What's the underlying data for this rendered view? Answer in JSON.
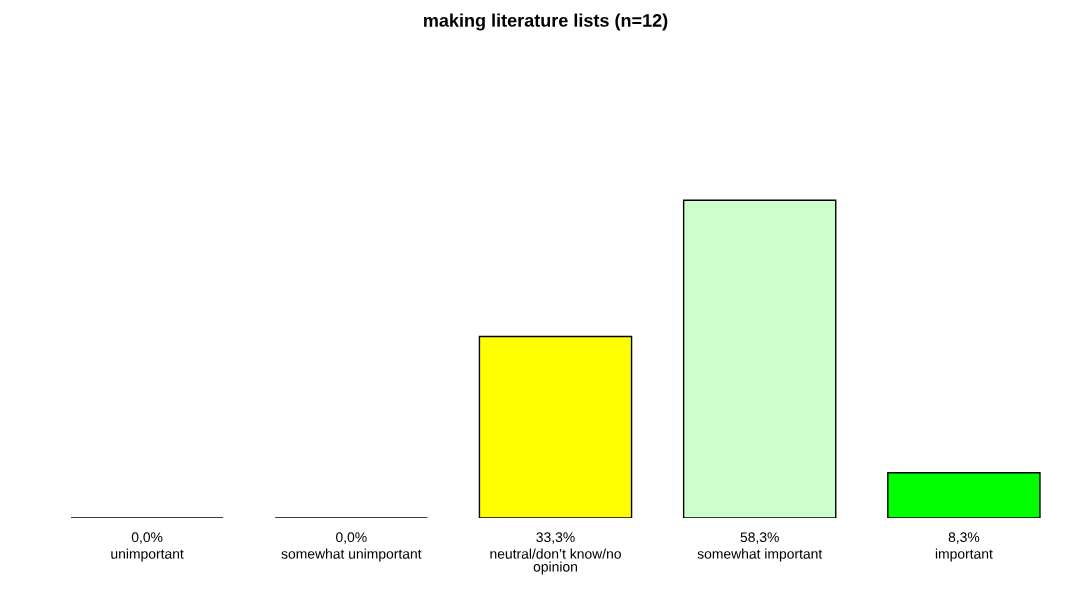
{
  "chart_data": {
    "type": "bar",
    "title": "making literature lists (n=12)",
    "categories": [
      "unimportant",
      "somewhat unimportant",
      "neutral/don’t know/no\nopinion",
      "somewhat important",
      "important"
    ],
    "values": [
      0.0,
      0.0,
      33.3,
      58.3,
      8.3
    ],
    "value_labels": [
      "0,0%",
      "0,0%",
      "33,3%",
      "58,3%",
      "8,3%"
    ],
    "colors": [
      "#000000",
      "#000000",
      "#ffff00",
      "#ccffcc",
      "#00ff00"
    ],
    "grid": false,
    "legend": false
  }
}
